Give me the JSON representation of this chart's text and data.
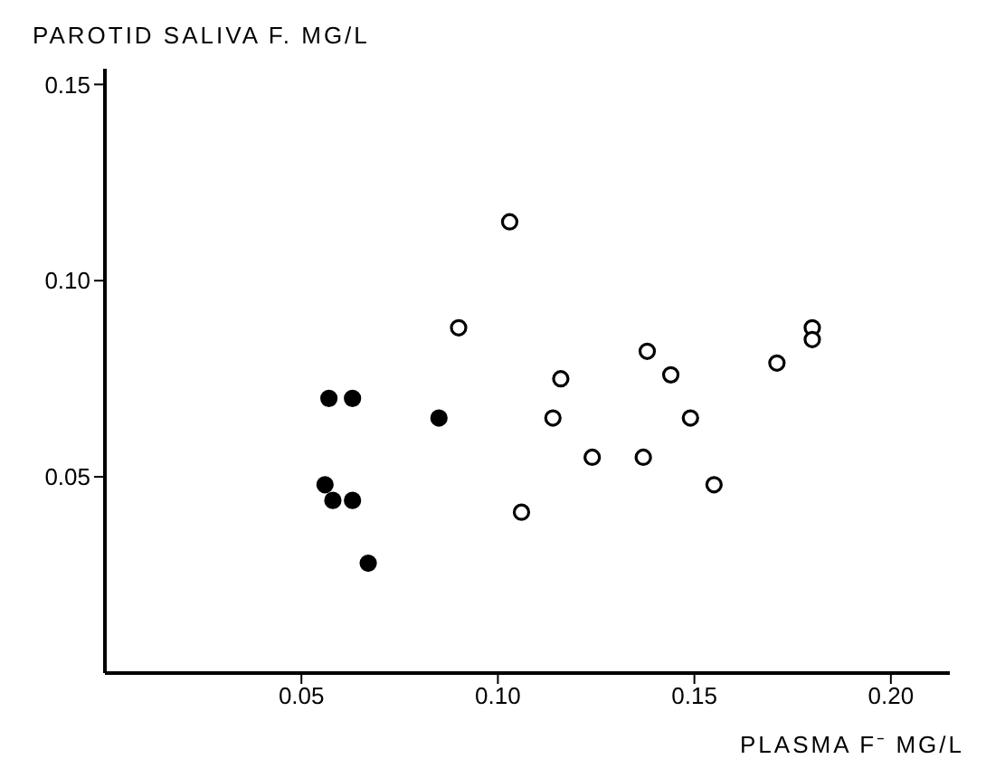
{
  "chart_data": {
    "type": "scatter",
    "xlabel": "PLASMA F⁻ MG/L",
    "ylabel": "PAROTID SALIVA F. MG/L",
    "xlim": [
      0,
      0.215
    ],
    "ylim": [
      0,
      0.154
    ],
    "xticks": [
      {
        "value": 0.05,
        "label": "0.05"
      },
      {
        "value": 0.1,
        "label": "0.10"
      },
      {
        "value": 0.15,
        "label": "0.15"
      },
      {
        "value": 0.2,
        "label": "0.20"
      }
    ],
    "yticks": [
      {
        "value": 0.05,
        "label": "0.05"
      },
      {
        "value": 0.1,
        "label": "0.10"
      },
      {
        "value": 0.15,
        "label": "0.15"
      }
    ],
    "grid": false,
    "marker": "circle",
    "series": [
      {
        "color": "#000000",
        "x": [
          0.057,
          0.063,
          0.085,
          0.056,
          0.058,
          0.063,
          0.067
        ],
        "values": [
          0.07,
          0.07,
          0.065,
          0.048,
          0.044,
          0.044,
          0.028
        ]
      },
      {
        "color": "#ffffff",
        "x": [
          0.103,
          0.09,
          0.138,
          0.144,
          0.116,
          0.114,
          0.149,
          0.124,
          0.137,
          0.155,
          0.106,
          0.171,
          0.18,
          0.18
        ],
        "values": [
          0.115,
          0.088,
          0.082,
          0.076,
          0.075,
          0.065,
          0.065,
          0.055,
          0.055,
          0.048,
          0.041,
          0.079,
          0.088,
          0.085
        ]
      }
    ]
  }
}
